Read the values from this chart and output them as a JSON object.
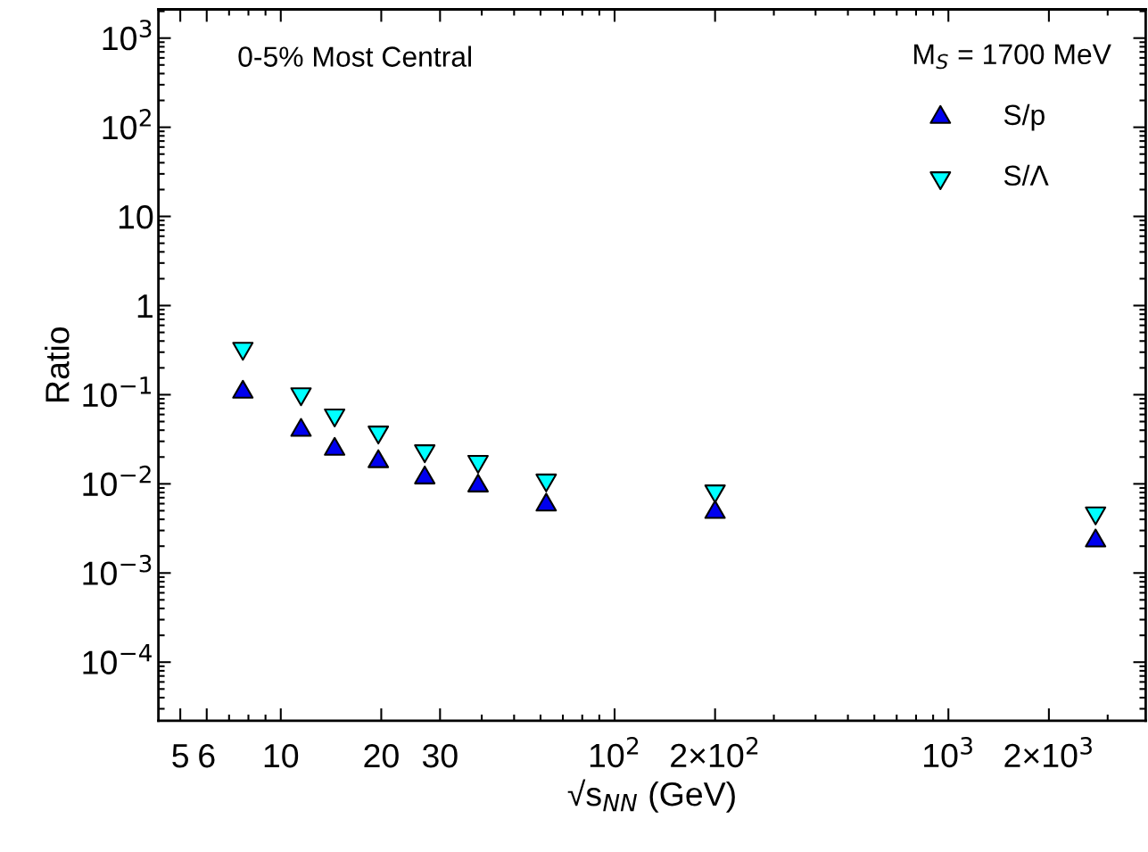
{
  "chart_data": {
    "type": "scatter",
    "annotations": [
      "0-5% Most Central"
    ],
    "xlabel": "√s$_{NN}$ (GeV)",
    "ylabel": "Ratio",
    "legend_title": "M$_{S}$ = 1700 MeV",
    "x": [
      7.7,
      11.5,
      14.5,
      19.6,
      27,
      39,
      62.4,
      200,
      2760
    ],
    "series": [
      {
        "name": "S/p",
        "color": "#0000ee",
        "marker": "triangle",
        "values": [
          0.107,
          0.04,
          0.0245,
          0.0178,
          0.0117,
          0.0095,
          0.0058,
          0.0048,
          0.0023
        ]
      },
      {
        "name": "S/Λ",
        "color": "#00ffff",
        "marker": "triangle-down",
        "values": [
          0.33,
          0.102,
          0.059,
          0.038,
          0.0234,
          0.0178,
          0.011,
          0.0083,
          0.0047
        ]
      }
    ],
    "log": "xy",
    "xlim": [
      4.3,
      3900
    ],
    "ylim": [
      2.2e-05,
      2100
    ],
    "xticks": [
      5,
      6,
      10,
      20,
      30,
      {
        "value": 100,
        "label": "10$^{2}$"
      },
      {
        "value": 200,
        "label": "2×10$^{2}$"
      },
      {
        "value": 1000,
        "label": "10$^{3}$"
      },
      {
        "value": 2000,
        "label": "2×10$^{3}$"
      }
    ],
    "yticks": [
      {
        "value": 0.0001,
        "label": "10$^{−4}$"
      },
      {
        "value": 0.001,
        "label": "10$^{−3}$"
      },
      {
        "value": 0.01,
        "label": "10$^{−2}$"
      },
      {
        "value": 0.1,
        "label": "10$^{−1}$"
      },
      1,
      10,
      {
        "value": 100,
        "label": "10$^{2}$"
      },
      {
        "value": 1000,
        "label": "10$^{3}$"
      }
    ],
    "grid": false,
    "legend": "top right"
  }
}
